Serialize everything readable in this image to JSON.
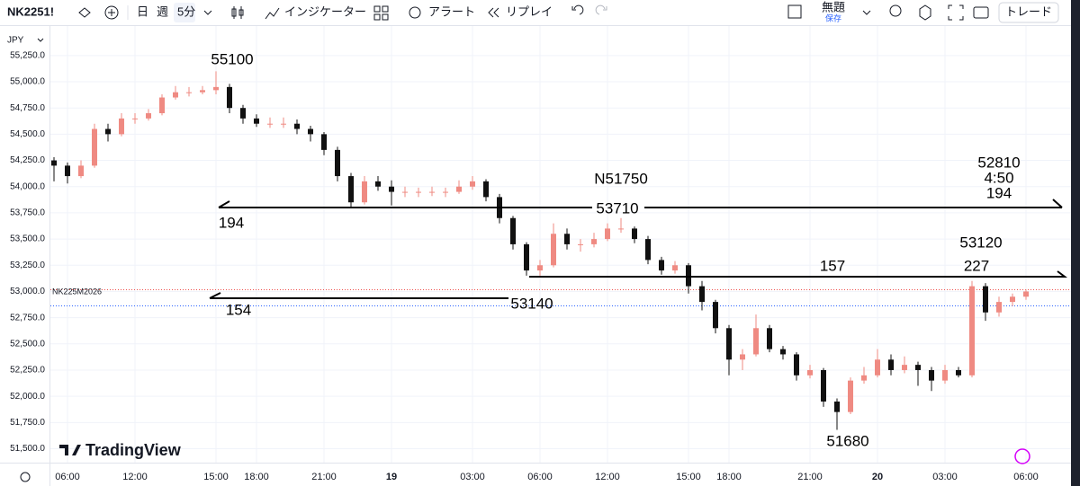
{
  "toolbar": {
    "symbol": "NK2251!",
    "day": "日",
    "week": "週",
    "interval": "5分",
    "indicators": "インジケーター",
    "alert": "アラート",
    "replay": "リプレイ",
    "layout_name": "無題",
    "save": "保存",
    "trade": "トレード"
  },
  "chart_data": {
    "type": "candlestick",
    "currency": "JPY",
    "series_label": "NK225M2026",
    "watermark": "TradingView",
    "categories": [
      null,
      "06:00",
      null,
      null,
      null,
      null,
      "12:00",
      null,
      null,
      null,
      null,
      null,
      "15:00",
      null,
      null,
      "18:00",
      null,
      null,
      null,
      null,
      "21:00",
      null,
      null,
      null,
      null,
      "19",
      null,
      null,
      null,
      null,
      null,
      "03:00",
      null,
      null,
      null,
      null,
      "06:00",
      null,
      null,
      null,
      null,
      "12:00",
      null,
      null,
      null,
      null,
      null,
      "15:00",
      null,
      null,
      "18:00",
      null,
      null,
      null,
      null,
      null,
      "21:00",
      null,
      null,
      null,
      null,
      "20",
      null,
      null,
      null,
      null,
      "03:00",
      null,
      null,
      null,
      null,
      null,
      "06:00"
    ],
    "open": [
      54250,
      54200,
      54100,
      54200,
      54550,
      54500,
      54650,
      54650,
      54700,
      54850,
      54900,
      54900,
      54920,
      54950,
      54750,
      54650,
      54600,
      54600,
      54600,
      54550,
      54500,
      54350,
      54100,
      53850,
      54050,
      54000,
      53950,
      53950,
      53950,
      53950,
      53950,
      54000,
      54050,
      53900,
      53700,
      53450,
      53200,
      53250,
      53550,
      53450,
      53450,
      53500,
      53600,
      53600,
      53500,
      53300,
      53200,
      53250,
      53050,
      52900,
      52650,
      52350,
      52400,
      52650,
      52450,
      52400,
      52200,
      52250,
      51950,
      51850,
      52150,
      52200,
      52350,
      52250,
      52300,
      52250,
      52150,
      52250,
      52200,
      53050,
      52800,
      52900,
      52950
    ],
    "high": [
      54280,
      54230,
      54250,
      54600,
      54600,
      54700,
      54700,
      54740,
      54880,
      54960,
      54950,
      54960,
      55100,
      54980,
      54780,
      54690,
      54660,
      54660,
      54640,
      54580,
      54520,
      54380,
      54130,
      54100,
      54100,
      54060,
      54000,
      53990,
      54000,
      53990,
      54060,
      54100,
      54070,
      53930,
      53720,
      53470,
      53300,
      53650,
      53600,
      53500,
      53560,
      53650,
      53700,
      53620,
      53530,
      53330,
      53290,
      53270,
      53100,
      52920,
      52680,
      52450,
      52780,
      52680,
      52480,
      52420,
      52300,
      52270,
      51980,
      52180,
      52280,
      52450,
      52400,
      52380,
      52330,
      52280,
      52300,
      52280,
      53100,
      53080,
      52950,
      52980,
      53020
    ],
    "low": [
      54050,
      54030,
      54080,
      54180,
      54430,
      54480,
      54600,
      54630,
      54680,
      54830,
      54860,
      54880,
      54880,
      54700,
      54600,
      54570,
      54560,
      54560,
      54500,
      54430,
      54300,
      54050,
      53800,
      53830,
      53960,
      53820,
      53900,
      53900,
      53910,
      53900,
      53930,
      53970,
      53860,
      53650,
      53400,
      53150,
      53150,
      53230,
      53400,
      53380,
      53420,
      53480,
      53560,
      53460,
      53260,
      53160,
      53170,
      52980,
      52820,
      52600,
      52200,
      52250,
      52380,
      52420,
      52350,
      52150,
      52170,
      51900,
      51680,
      51830,
      52120,
      52180,
      52200,
      52220,
      52100,
      52050,
      52120,
      52180,
      52180,
      52720,
      52760,
      52860,
      52920
    ],
    "close": [
      54200,
      54100,
      54200,
      54550,
      54500,
      54650,
      54650,
      54700,
      54850,
      54900,
      54900,
      54920,
      54950,
      54750,
      54650,
      54600,
      54600,
      54600,
      54550,
      54500,
      54350,
      54100,
      53850,
      54050,
      54000,
      53950,
      53950,
      53950,
      53950,
      53950,
      54000,
      54050,
      53900,
      53700,
      53450,
      53200,
      53250,
      53550,
      53450,
      53450,
      53500,
      53600,
      53600,
      53500,
      53300,
      53200,
      53250,
      53050,
      52900,
      52650,
      52350,
      52400,
      52650,
      52450,
      52400,
      52200,
      52250,
      51950,
      51850,
      52150,
      52200,
      52350,
      52250,
      52300,
      52250,
      52150,
      52250,
      52200,
      53050,
      52800,
      52900,
      52950,
      53000
    ],
    "colors": {
      "up": "#ef8a82",
      "down": "#111111"
    },
    "ylim": [
      51410,
      55480
    ],
    "yticks": [
      {
        "value": 51500,
        "label": "51,500.0"
      },
      {
        "value": 51750,
        "label": "51,750.0"
      },
      {
        "value": 52000,
        "label": "52,000.0"
      },
      {
        "value": 52250,
        "label": "52,250.0"
      },
      {
        "value": 52500,
        "label": "52,500.0"
      },
      {
        "value": 52750,
        "label": "52,750.0"
      },
      {
        "value": 53000,
        "label": "53,000.0"
      },
      {
        "value": 53250,
        "label": "53,250.0"
      },
      {
        "value": 53500,
        "label": "53,500.0"
      },
      {
        "value": 53750,
        "label": "53,750.0"
      },
      {
        "value": 54000,
        "label": "54,000.0"
      },
      {
        "value": 54250,
        "label": "54,250.0"
      },
      {
        "value": 54500,
        "label": "54,500.0"
      },
      {
        "value": 54750,
        "label": "54,750.0"
      },
      {
        "value": 55000,
        "label": "55,000.0"
      },
      {
        "value": 55250,
        "label": "55,250.0"
      }
    ],
    "grid": true,
    "annotations": [
      "55100",
      "194",
      "154",
      "53140",
      "N51750",
      "53710",
      "157",
      "52810",
      "4:50",
      "194",
      "53120",
      "227",
      "51680"
    ]
  }
}
